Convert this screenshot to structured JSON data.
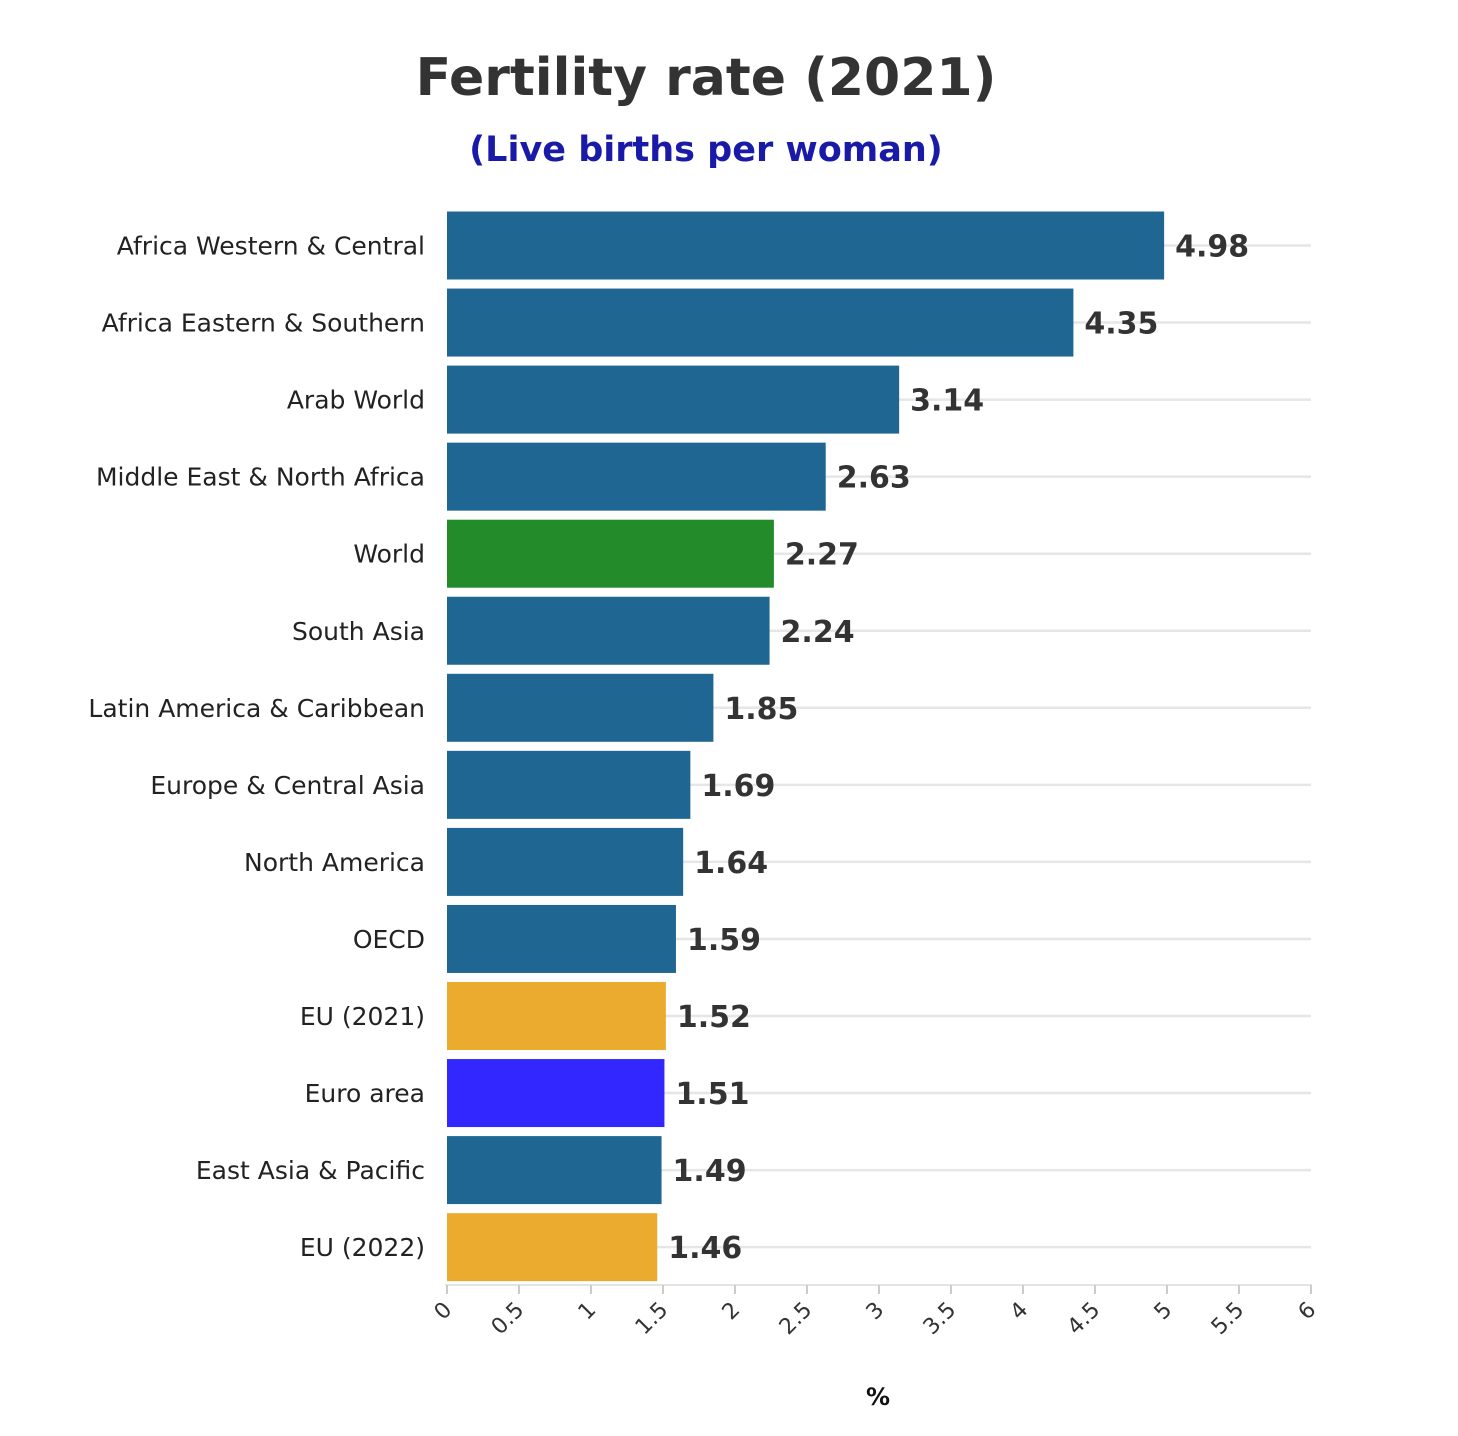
{
  "chart_data": {
    "type": "bar",
    "orientation": "horizontal",
    "title": "Fertility rate (2021)",
    "subtitle": "(Live births per woman)",
    "xlabel": "%",
    "ylabel": "",
    "xlim": [
      0,
      6
    ],
    "x_ticks": [
      "0",
      "0.5",
      "1",
      "1.5",
      "2",
      "2.5",
      "3",
      "3.5",
      "4",
      "4.5",
      "5",
      "5.5",
      "6"
    ],
    "grid": "horizontal lines at each category",
    "categories": [
      "Africa Western & Central",
      "Africa Eastern & Southern",
      "Arab World",
      "Middle East & North Africa",
      "World",
      "South Asia",
      "Latin America & Caribbean",
      "Europe & Central Asia",
      "North America",
      "OECD",
      "EU (2021)",
      "Euro area",
      "East Asia & Pacific",
      "EU (2022)"
    ],
    "values": [
      4.98,
      4.35,
      3.14,
      2.63,
      2.27,
      2.24,
      1.85,
      1.69,
      1.64,
      1.59,
      1.52,
      1.51,
      1.49,
      1.46
    ],
    "value_labels": [
      "4.98",
      "4.35",
      "3.14",
      "2.63",
      "2.27",
      "2.24",
      "1.85",
      "1.69",
      "1.64",
      "1.59",
      "1.52",
      "1.51",
      "1.49",
      "1.46"
    ],
    "bar_colors": [
      "#1f6792",
      "#1f6792",
      "#1f6792",
      "#1f6792",
      "#238b2a",
      "#1f6792",
      "#1f6792",
      "#1f6792",
      "#1f6792",
      "#1f6792",
      "#ebab2e",
      "#3228ff",
      "#1f6792",
      "#ebab2e"
    ],
    "colors": {
      "default_bar": "#1f6792",
      "world": "#238b2a",
      "eu": "#ebab2e",
      "euro_area": "#3228ff",
      "subtitle": "#1a1aa8",
      "title": "#333333"
    }
  }
}
